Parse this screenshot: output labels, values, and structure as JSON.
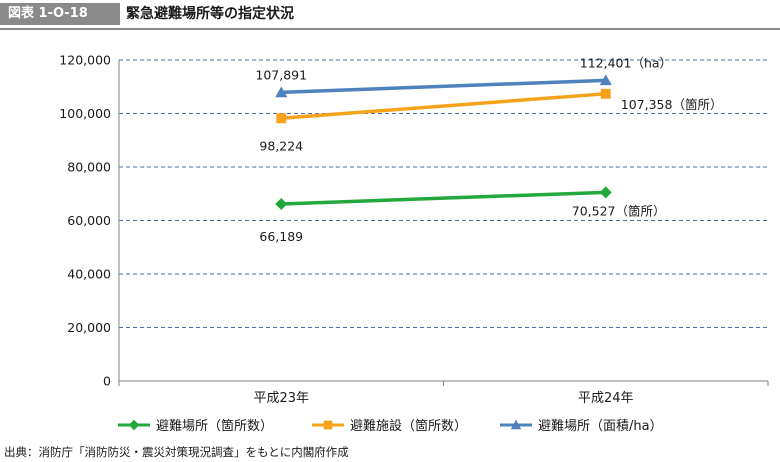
{
  "figure": {
    "label": "図表 1-O-18",
    "title": "緊急避難場所等の指定状況"
  },
  "source": "出典：消防庁「消防防災・震災対策現況調査」をもとに内閣府作成",
  "chart_data": {
    "type": "line",
    "categories": [
      "平成23年",
      "平成24年"
    ],
    "ylim": [
      0,
      120000
    ],
    "yticks": [
      0,
      20000,
      40000,
      60000,
      80000,
      100000,
      120000
    ],
    "ytick_labels": [
      "0",
      "20,000",
      "40,000",
      "60,000",
      "80,000",
      "100,000",
      "120,000"
    ],
    "grid": true,
    "legend_position": "bottom",
    "series": [
      {
        "name": "避難場所（箇所数）",
        "values": [
          66189,
          70527
        ],
        "labels": [
          "66,189",
          "70,527（箇所）"
        ],
        "color": "#22a83c",
        "marker": "diamond"
      },
      {
        "name": "避難施設（箇所数）",
        "values": [
          98224,
          107358
        ],
        "labels": [
          "98,224",
          "107,358（箇所）"
        ],
        "color": "#f7a21b",
        "marker": "square"
      },
      {
        "name": "避難場所（面積/ha）",
        "values": [
          107891,
          112401
        ],
        "labels": [
          "107,891",
          "112,401（ha）"
        ],
        "color": "#4f81bd",
        "marker": "triangle"
      }
    ]
  }
}
